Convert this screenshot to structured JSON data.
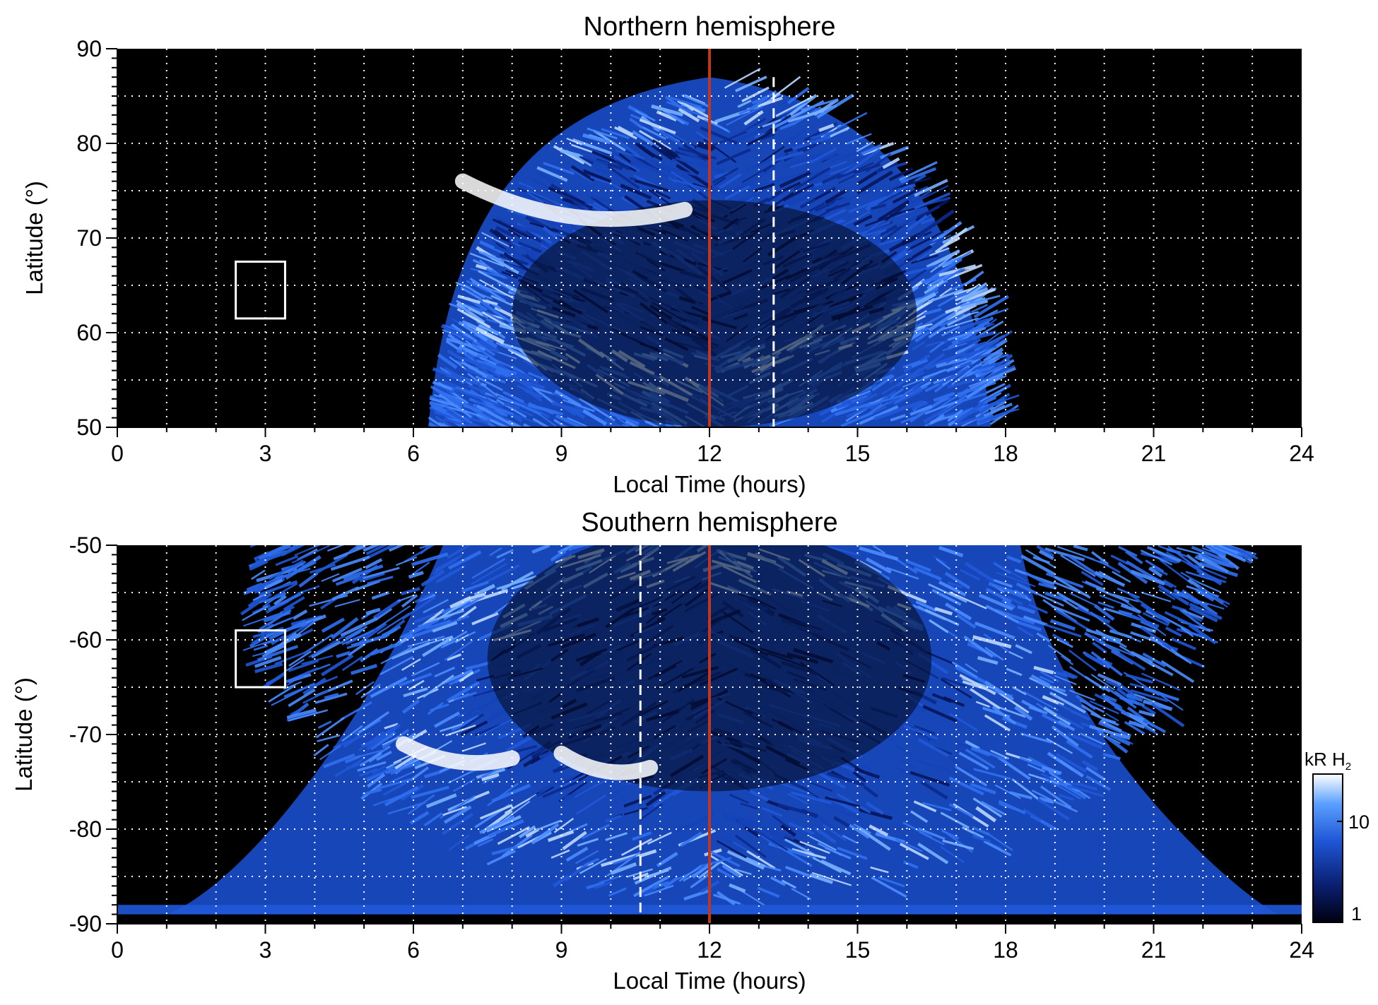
{
  "colors": {
    "background": "#000000",
    "aurora_low": "#0a2a8a",
    "aurora_mid": "#2f6ff0",
    "aurora_high": "#ffffff",
    "noon_line": "#c0361f",
    "grid": "#ffffff"
  },
  "chart_data": [
    {
      "type": "heatmap",
      "title": "Northern hemisphere",
      "xlabel": "Local Time (hours)",
      "ylabel": "Latitude (°)",
      "xlim": [
        0,
        24
      ],
      "ylim": [
        50,
        90
      ],
      "xticks": [
        0,
        3,
        6,
        9,
        12,
        15,
        18,
        21,
        24
      ],
      "yticks": [
        50,
        60,
        70,
        80,
        90
      ],
      "grid": "dotted every 1 h and 5°",
      "lt_coverage": [
        6.3,
        17.7
      ],
      "main_oval_lt": [
        6.8,
        17.3
      ],
      "bright_arc": [
        {
          "lt_start": 7.0,
          "lt_end": 11.5,
          "lat_start": 70,
          "lat_end": 76
        }
      ],
      "solid_marker_lt": 12.0,
      "dashed_marker_lt": 13.3,
      "box": {
        "lt": [
          2.4,
          3.4
        ],
        "lat": [
          61.5,
          67.5
        ]
      }
    },
    {
      "type": "heatmap",
      "title": "Southern hemisphere",
      "xlabel": "Local Time (hours)",
      "ylabel": "Latitude (°)",
      "xlim": [
        0,
        24
      ],
      "ylim": [
        -90,
        -50
      ],
      "xticks": [
        0,
        3,
        6,
        9,
        12,
        15,
        18,
        21,
        24
      ],
      "yticks": [
        -90,
        -80,
        -70,
        -60,
        -50
      ],
      "grid": "dotted every 1 h and 5°",
      "lt_coverage": [
        2.5,
        22.5
      ],
      "main_oval_lt": [
        5.9,
        18.1
      ],
      "bright_arc": [
        {
          "lt_start": 5.8,
          "lt_end": 8.0,
          "lat_start": -74,
          "lat_end": -71
        },
        {
          "lt_start": 9.0,
          "lt_end": 10.8,
          "lat_start": -75,
          "lat_end": -72
        }
      ],
      "solid_marker_lt": 12.0,
      "dashed_marker_lt": 10.6,
      "box": {
        "lt": [
          2.4,
          3.4
        ],
        "lat": [
          -65,
          -59
        ]
      }
    }
  ],
  "colorbar": {
    "label_main": "kR H",
    "label_sub": "2",
    "scale": "log",
    "range": [
      1,
      30
    ],
    "ticks": [
      "10",
      "1"
    ]
  }
}
